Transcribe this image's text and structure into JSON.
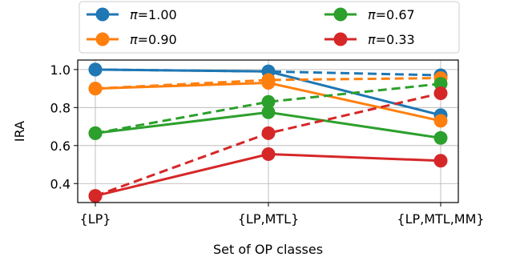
{
  "chart_data": {
    "type": "line",
    "categories": [
      "{LP}",
      "{LP,MTL}",
      "{LP,MTL,MM}"
    ],
    "xlabel": "Set of OP classes",
    "ylabel": "IRA",
    "ylim": [
      0.3,
      1.05
    ],
    "yticks": [
      0.4,
      0.6,
      0.8,
      1.0
    ],
    "ytick_labels": [
      "0.4",
      "0.6",
      "0.8",
      "1.0"
    ],
    "grid": true,
    "legend_position": "top",
    "series": [
      {
        "name": "π=1.00",
        "symbol": "π",
        "value_label": "=1.00",
        "color": "#1f77b4",
        "solid": [
          1.0,
          0.99,
          0.76
        ],
        "dashed": [
          1.0,
          0.99,
          0.97
        ]
      },
      {
        "name": "π=0.90",
        "symbol": "π",
        "value_label": "=0.90",
        "color": "#ff7f0e",
        "solid": [
          0.9,
          0.93,
          0.73
        ],
        "dashed": [
          0.9,
          0.945,
          0.955
        ]
      },
      {
        "name": "π=0.67",
        "symbol": "π",
        "value_label": "=0.67",
        "color": "#2ca02c",
        "solid": [
          0.665,
          0.775,
          0.64
        ],
        "dashed": [
          0.665,
          0.83,
          0.925
        ]
      },
      {
        "name": "π=0.33",
        "symbol": "π",
        "value_label": "=0.33",
        "color": "#d62728",
        "solid": [
          0.335,
          0.555,
          0.52
        ],
        "dashed": [
          0.335,
          0.665,
          0.875
        ]
      }
    ]
  }
}
